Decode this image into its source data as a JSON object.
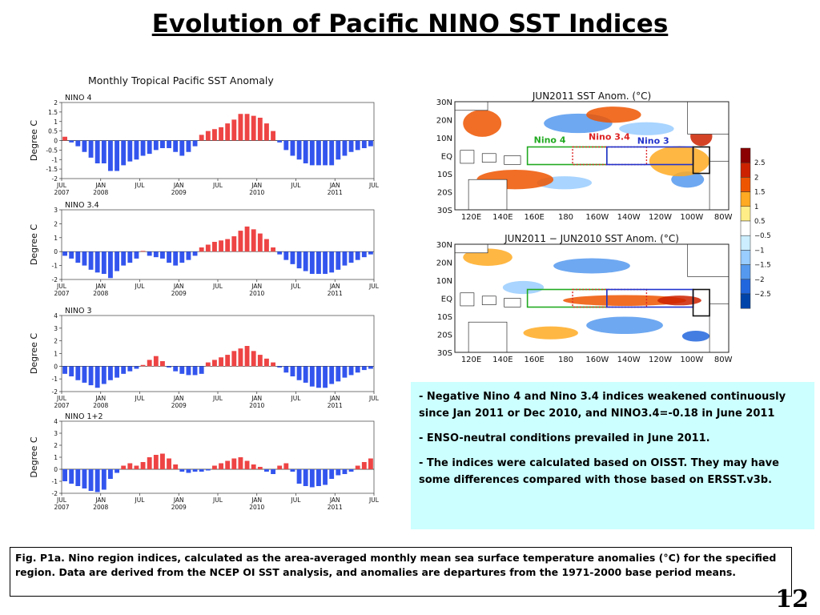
{
  "page": {
    "title": "Evolution of Pacific NINO SST Indices",
    "page_number": "12",
    "notes": [
      "- Negative Nino 4 and Nino 3.4 indices weakened continuously since Jan 2011 or Dec 2010, and NINO3.4=-0.18 in June 2011",
      "- ENSO-neutral conditions prevailed in June 2011.",
      "- The indices were calculated based on OISST. They may have some differences compared with those based on ERSST.v3b."
    ],
    "caption": "Fig. P1a. Nino region indices, calculated as the area-averaged monthly mean sea surface temperature anomalies (°C) for the specified region. Data are derived from the NCEP OI SST analysis, and anomalies are departures from the 1971-2000 base period means."
  },
  "chart_data": [
    {
      "type": "bar",
      "panel_title": "Monthly Tropical Pacific SST Anomaly",
      "title": "NINO 4",
      "ylabel": "Degree C",
      "ylim": [
        -2,
        2
      ],
      "yticks": [
        -2,
        -1.5,
        -1,
        -0.5,
        0,
        0.5,
        1,
        1.5,
        2
      ],
      "xticks": [
        "JUL\n2007",
        "JAN\n2008",
        "JUL",
        "JAN\n2009",
        "JUL",
        "JAN\n2010",
        "JUL",
        "JAN\n2011",
        "JUL"
      ],
      "positive_color": "#ee4444",
      "negative_color": "#3355ee",
      "values": [
        0.2,
        -0.1,
        -0.3,
        -0.6,
        -0.9,
        -1.2,
        -1.2,
        -1.6,
        -1.6,
        -1.3,
        -1.1,
        -1.0,
        -0.8,
        -0.7,
        -0.5,
        -0.4,
        -0.4,
        -0.6,
        -0.8,
        -0.6,
        -0.3,
        0.3,
        0.5,
        0.6,
        0.7,
        0.9,
        1.1,
        1.4,
        1.4,
        1.3,
        1.2,
        0.9,
        0.5,
        -0.1,
        -0.5,
        -0.8,
        -1.0,
        -1.2,
        -1.3,
        -1.3,
        -1.3,
        -1.3,
        -1.0,
        -0.8,
        -0.6,
        -0.5,
        -0.4,
        -0.3
      ]
    },
    {
      "type": "bar",
      "title": "NINO 3.4",
      "ylabel": "Degree C",
      "ylim": [
        -2,
        3
      ],
      "yticks": [
        -2,
        -1,
        0,
        1,
        2,
        3
      ],
      "xticks": [
        "JUL\n2007",
        "JAN\n2008",
        "JUL",
        "JAN\n2009",
        "JUL",
        "JAN\n2010",
        "JUL",
        "JAN\n2011",
        "JUL"
      ],
      "positive_color": "#ee4444",
      "negative_color": "#3355ee",
      "values": [
        -0.3,
        -0.5,
        -0.8,
        -1.0,
        -1.3,
        -1.5,
        -1.6,
        -1.9,
        -1.4,
        -1.0,
        -0.8,
        -0.5,
        0.05,
        -0.3,
        -0.4,
        -0.5,
        -0.8,
        -1.0,
        -0.8,
        -0.6,
        -0.3,
        0.3,
        0.5,
        0.7,
        0.8,
        0.9,
        1.1,
        1.5,
        1.8,
        1.6,
        1.3,
        0.9,
        0.3,
        -0.2,
        -0.6,
        -0.9,
        -1.2,
        -1.4,
        -1.6,
        -1.6,
        -1.6,
        -1.5,
        -1.3,
        -1.0,
        -0.8,
        -0.6,
        -0.4,
        -0.2
      ]
    },
    {
      "type": "bar",
      "title": "NINO 3",
      "ylabel": "Degree C",
      "ylim": [
        -2,
        4
      ],
      "yticks": [
        -2,
        -1,
        0,
        1,
        2,
        3,
        4
      ],
      "xticks": [
        "JUL\n2007",
        "JAN\n2008",
        "JUL",
        "JAN\n2009",
        "JUL",
        "JAN\n2010",
        "JUL",
        "JAN\n2011",
        "JUL"
      ],
      "positive_color": "#ee4444",
      "negative_color": "#3355ee",
      "values": [
        -0.6,
        -0.8,
        -1.1,
        -1.3,
        -1.5,
        -1.7,
        -1.4,
        -1.1,
        -0.9,
        -0.6,
        -0.4,
        -0.2,
        0.1,
        0.5,
        0.8,
        0.4,
        -0.1,
        -0.4,
        -0.6,
        -0.7,
        -0.7,
        -0.6,
        0.3,
        0.5,
        0.7,
        0.9,
        1.2,
        1.4,
        1.6,
        1.2,
        0.9,
        0.6,
        0.3,
        -0.1,
        -0.5,
        -0.8,
        -1.1,
        -1.3,
        -1.6,
        -1.7,
        -1.7,
        -1.4,
        -1.2,
        -0.9,
        -0.7,
        -0.5,
        -0.3,
        -0.2
      ]
    },
    {
      "type": "bar",
      "title": "NINO 1+2",
      "ylabel": "Degree C",
      "ylim": [
        -2,
        4
      ],
      "yticks": [
        -2,
        -1,
        0,
        1,
        2,
        3,
        4
      ],
      "xticks": [
        "JUL\n2007",
        "JAN\n2008",
        "JUL",
        "JAN\n2009",
        "JUL",
        "JAN\n2010",
        "JUL",
        "JAN\n2011",
        "JUL"
      ],
      "positive_color": "#ee4444",
      "negative_color": "#3355ee",
      "values": [
        -1.0,
        -1.2,
        -1.4,
        -1.6,
        -1.8,
        -1.9,
        -1.7,
        -0.8,
        -0.3,
        0.3,
        0.5,
        0.3,
        0.6,
        1.0,
        1.2,
        1.3,
        0.9,
        0.4,
        -0.2,
        -0.3,
        -0.2,
        -0.2,
        -0.1,
        0.3,
        0.5,
        0.7,
        0.9,
        1.0,
        0.7,
        0.4,
        0.2,
        -0.2,
        -0.4,
        0.3,
        0.5,
        -0.2,
        -1.2,
        -1.4,
        -1.5,
        -1.4,
        -1.3,
        -0.8,
        -0.5,
        -0.4,
        -0.2,
        0.3,
        0.6,
        0.9
      ]
    },
    {
      "type": "heatmap",
      "title": "JUN2011 SST Anom. (°C)",
      "lat_labels": [
        "30N",
        "20N",
        "10N",
        "EQ",
        "10S",
        "20S",
        "30S"
      ],
      "lon_labels": [
        "120E",
        "140E",
        "160E",
        "180",
        "160W",
        "140W",
        "120W",
        "100W",
        "80W"
      ],
      "region_labels": [
        {
          "name": "Nino 4",
          "color": "#22aa22"
        },
        {
          "name": "Nino 3.4",
          "color": "#dd2222"
        },
        {
          "name": "Nino 3",
          "color": "#2233cc"
        }
      ]
    },
    {
      "type": "heatmap",
      "title": "JUN2011 − JUN2010 SST Anom. (°C)",
      "lat_labels": [
        "30N",
        "20N",
        "10N",
        "EQ",
        "10S",
        "20S",
        "30S"
      ],
      "lon_labels": [
        "120E",
        "140E",
        "160E",
        "180",
        "160W",
        "140W",
        "120W",
        "100W",
        "80W"
      ]
    }
  ],
  "colorbar": {
    "labels": [
      "2.5",
      "2",
      "1.5",
      "1",
      "0.5",
      "−0.5",
      "−1",
      "−1.5",
      "−2",
      "−2.5"
    ],
    "colors": [
      "#8b0000",
      "#cc2200",
      "#ee5500",
      "#ffaa22",
      "#ffee88",
      "#ffffff",
      "#cceeff",
      "#99ccff",
      "#5599ee",
      "#2266dd",
      "#0044aa"
    ]
  }
}
